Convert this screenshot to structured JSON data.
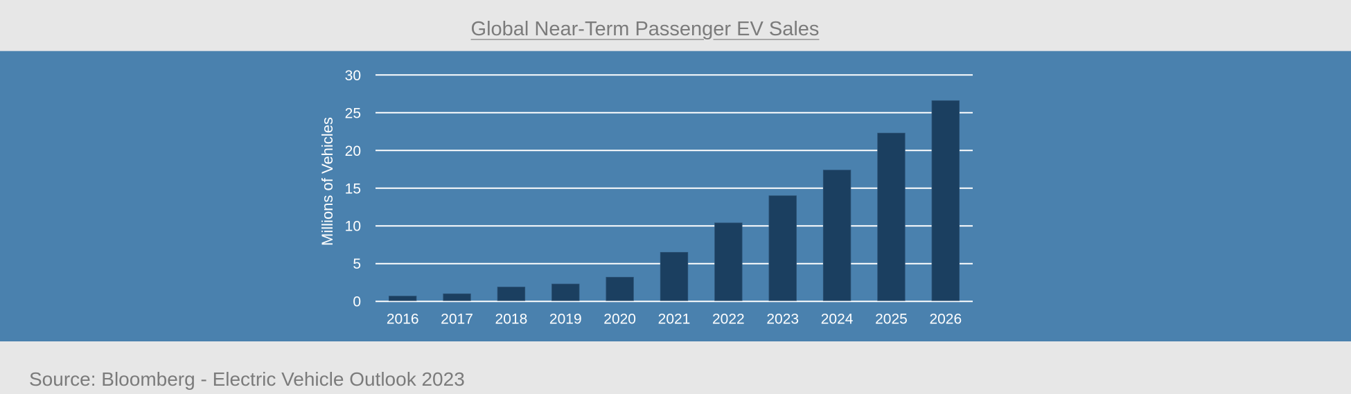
{
  "chart_data": {
    "type": "bar",
    "title": "Global Near-Term Passenger EV Sales",
    "xlabel": "",
    "ylabel": "Millions of Vehicles",
    "categories": [
      "2016",
      "2017",
      "2018",
      "2019",
      "2020",
      "2021",
      "2022",
      "2023",
      "2024",
      "2025",
      "2026"
    ],
    "values": [
      0.7,
      1.0,
      1.9,
      2.3,
      3.2,
      6.5,
      10.4,
      14.0,
      17.4,
      22.3,
      26.6
    ],
    "ylim": [
      0,
      30
    ],
    "yticks": [
      0,
      5,
      10,
      15,
      20,
      25,
      30
    ],
    "grid": true,
    "legend": "none",
    "colors": {
      "bar": "#1b3f60",
      "plot_background": "#4a81ae",
      "page_background": "#e7e7e7",
      "gridline": "#ffffff",
      "text": "#7b7b7b"
    }
  },
  "footer": {
    "source": "Source: Bloomberg - Electric Vehicle Outlook 2023"
  }
}
